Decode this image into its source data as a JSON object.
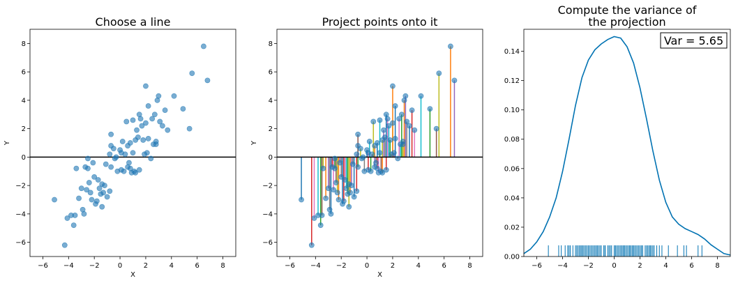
{
  "chart_data": [
    {
      "type": "scatter",
      "title": "Choose a line",
      "xlabel": "X",
      "ylabel": "Y",
      "xlim": [
        -7,
        9
      ],
      "ylim": [
        -7,
        9
      ],
      "xticks": [
        -6,
        -4,
        -2,
        0,
        2,
        4,
        6,
        8
      ],
      "yticks": [
        -6,
        -4,
        -2,
        0,
        2,
        4,
        6,
        8
      ],
      "hline_y": 0,
      "point_color": "#1f77b4",
      "points": [
        [
          -5.1,
          -3.0
        ],
        [
          -4.3,
          -6.2
        ],
        [
          -4.1,
          -4.3
        ],
        [
          -3.8,
          -4.1
        ],
        [
          -3.6,
          -4.8
        ],
        [
          -3.5,
          -4.1
        ],
        [
          -3.4,
          -0.8
        ],
        [
          -3.2,
          -2.9
        ],
        [
          -3.0,
          -2.2
        ],
        [
          -2.9,
          -3.7
        ],
        [
          -2.8,
          -4.0
        ],
        [
          -2.7,
          -0.7
        ],
        [
          -2.6,
          -2.3
        ],
        [
          -2.5,
          -0.1
        ],
        [
          -2.5,
          -0.8
        ],
        [
          -2.4,
          -1.8
        ],
        [
          -2.3,
          -2.5
        ],
        [
          -2.2,
          -3.0
        ],
        [
          -2.1,
          -0.4
        ],
        [
          -2.0,
          -1.4
        ],
        [
          -1.9,
          -3.3
        ],
        [
          -1.8,
          -3.1
        ],
        [
          -1.7,
          -1.6
        ],
        [
          -1.6,
          -2.2
        ],
        [
          -1.5,
          -2.6
        ],
        [
          -1.4,
          -1.9
        ],
        [
          -1.4,
          -3.5
        ],
        [
          -1.3,
          -2.5
        ],
        [
          -1.2,
          -2.0
        ],
        [
          -1.1,
          -0.5
        ],
        [
          -1.0,
          -2.8
        ],
        [
          -0.8,
          -2.4
        ],
        [
          -0.8,
          0.2
        ],
        [
          -0.7,
          0.8
        ],
        [
          -0.7,
          -0.7
        ],
        [
          -0.7,
          1.6
        ],
        [
          -0.5,
          0.6
        ],
        [
          -0.4,
          -0.1
        ],
        [
          -0.3,
          0.0
        ],
        [
          -0.2,
          -1.0
        ],
        [
          0.0,
          0.5
        ],
        [
          0.1,
          -0.9
        ],
        [
          0.1,
          0.3
        ],
        [
          0.2,
          1.1
        ],
        [
          0.3,
          -1.0
        ],
        [
          0.4,
          0.2
        ],
        [
          0.5,
          2.5
        ],
        [
          0.6,
          0.8
        ],
        [
          0.6,
          -0.7
        ],
        [
          0.7,
          -0.4
        ],
        [
          0.8,
          1.0
        ],
        [
          0.8,
          -0.8
        ],
        [
          0.9,
          -1.1
        ],
        [
          1.0,
          2.6
        ],
        [
          1.0,
          0.3
        ],
        [
          1.1,
          -1.0
        ],
        [
          1.2,
          1.2
        ],
        [
          1.2,
          -1.1
        ],
        [
          1.3,
          1.9
        ],
        [
          1.4,
          1.4
        ],
        [
          1.5,
          3.0
        ],
        [
          1.5,
          -0.9
        ],
        [
          1.6,
          2.7
        ],
        [
          1.7,
          2.2
        ],
        [
          1.8,
          1.2
        ],
        [
          1.9,
          0.2
        ],
        [
          2.0,
          2.4
        ],
        [
          2.0,
          5.0
        ],
        [
          2.1,
          0.3
        ],
        [
          2.2,
          1.3
        ],
        [
          2.2,
          3.6
        ],
        [
          2.4,
          -0.1
        ],
        [
          2.5,
          2.7
        ],
        [
          2.6,
          0.9
        ],
        [
          2.7,
          3.0
        ],
        [
          2.8,
          1.1
        ],
        [
          2.8,
          0.9
        ],
        [
          2.9,
          4.0
        ],
        [
          3.0,
          4.3
        ],
        [
          3.1,
          2.5
        ],
        [
          3.3,
          2.2
        ],
        [
          3.5,
          3.3
        ],
        [
          3.7,
          1.9
        ],
        [
          4.2,
          4.3
        ],
        [
          4.9,
          3.4
        ],
        [
          5.4,
          2.0
        ],
        [
          5.6,
          5.9
        ],
        [
          6.5,
          7.8
        ],
        [
          6.8,
          5.4
        ]
      ]
    },
    {
      "type": "scatter",
      "title": "Project points onto it",
      "xlabel": "X",
      "ylabel": "Y",
      "xlim": [
        -7,
        9
      ],
      "ylim": [
        -7,
        9
      ],
      "xticks": [
        -6,
        -4,
        -2,
        0,
        2,
        4,
        6,
        8
      ],
      "yticks": [
        -6,
        -4,
        -2,
        0,
        2,
        4,
        6,
        8
      ],
      "hline_y": 0,
      "projection_colors": [
        "#1f77b4",
        "#ff7f0e",
        "#2ca02c",
        "#d62728",
        "#9467bd",
        "#8c564b",
        "#e377c2",
        "#7f7f7f",
        "#bcbd22",
        "#17becf"
      ]
    },
    {
      "type": "area",
      "title_lines": [
        "Compute the variance of",
        "the projection"
      ],
      "annotation": "Var = 5.65",
      "xlim": [
        -7,
        9
      ],
      "ylim": [
        0,
        0.155
      ],
      "xticks": [
        -6,
        -4,
        -2,
        0,
        2,
        4,
        6,
        8
      ],
      "yticks": [
        0.0,
        0.02,
        0.04,
        0.06,
        0.08,
        0.1,
        0.12,
        0.14
      ],
      "ytick_labels": [
        "0.00",
        "0.02",
        "0.04",
        "0.06",
        "0.08",
        "0.10",
        "0.12",
        "0.14"
      ],
      "line_color": "#0072b2",
      "density_x": [
        -7,
        -6.5,
        -6,
        -5.5,
        -5,
        -4.5,
        -4,
        -3.5,
        -3,
        -2.5,
        -2,
        -1.5,
        -1,
        -0.5,
        0,
        0.5,
        1,
        1.5,
        2,
        2.5,
        3,
        3.5,
        4,
        4.5,
        5,
        5.5,
        6,
        6.5,
        7,
        7.5,
        8,
        8.5,
        9
      ],
      "density_y": [
        0.002,
        0.005,
        0.01,
        0.017,
        0.027,
        0.04,
        0.058,
        0.08,
        0.103,
        0.122,
        0.134,
        0.141,
        0.145,
        0.148,
        0.15,
        0.149,
        0.143,
        0.132,
        0.115,
        0.094,
        0.072,
        0.052,
        0.037,
        0.027,
        0.022,
        0.019,
        0.017,
        0.015,
        0.012,
        0.008,
        0.005,
        0.002,
        0.001
      ]
    }
  ]
}
